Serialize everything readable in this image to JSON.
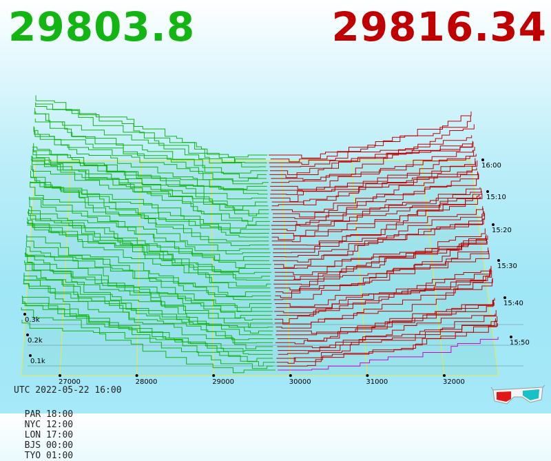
{
  "header": {
    "bid_price": "29803.8",
    "ask_price": "29816.34",
    "bid_color": "#12b512",
    "ask_color": "#c00000"
  },
  "footer": {
    "utc": "UTC 2022-05-22 16:00",
    "timezones": [
      {
        "label": "PAR 18:00"
      },
      {
        "label": "NYC 12:00"
      },
      {
        "label": "LON 17:00"
      },
      {
        "label": "BJS 00:00"
      },
      {
        "label": "TYO 01:00"
      }
    ]
  },
  "chart_data": {
    "type": "area",
    "style": "3d order book depth over time",
    "x_ticks": [
      "27000",
      "28000",
      "29000",
      "30000",
      "31000",
      "32000"
    ],
    "x_values": [
      27000,
      28000,
      29000,
      30000,
      31000,
      32000
    ],
    "depth_ticks": [
      "0.1k",
      "0.2k",
      "0.3k"
    ],
    "depth_values": [
      100,
      200,
      300
    ],
    "time_ticks": [
      "16:00",
      "15:10",
      "15:20",
      "15:30",
      "15:40",
      "15:50"
    ],
    "bid_price": 29803.8,
    "ask_price": 29816.34,
    "bid_color": "#12b512",
    "ask_color": "#c00000",
    "highlight_color": "#d000d0",
    "grid_color": "#e8e84a"
  },
  "glasses_icon": "3d-glasses-icon"
}
